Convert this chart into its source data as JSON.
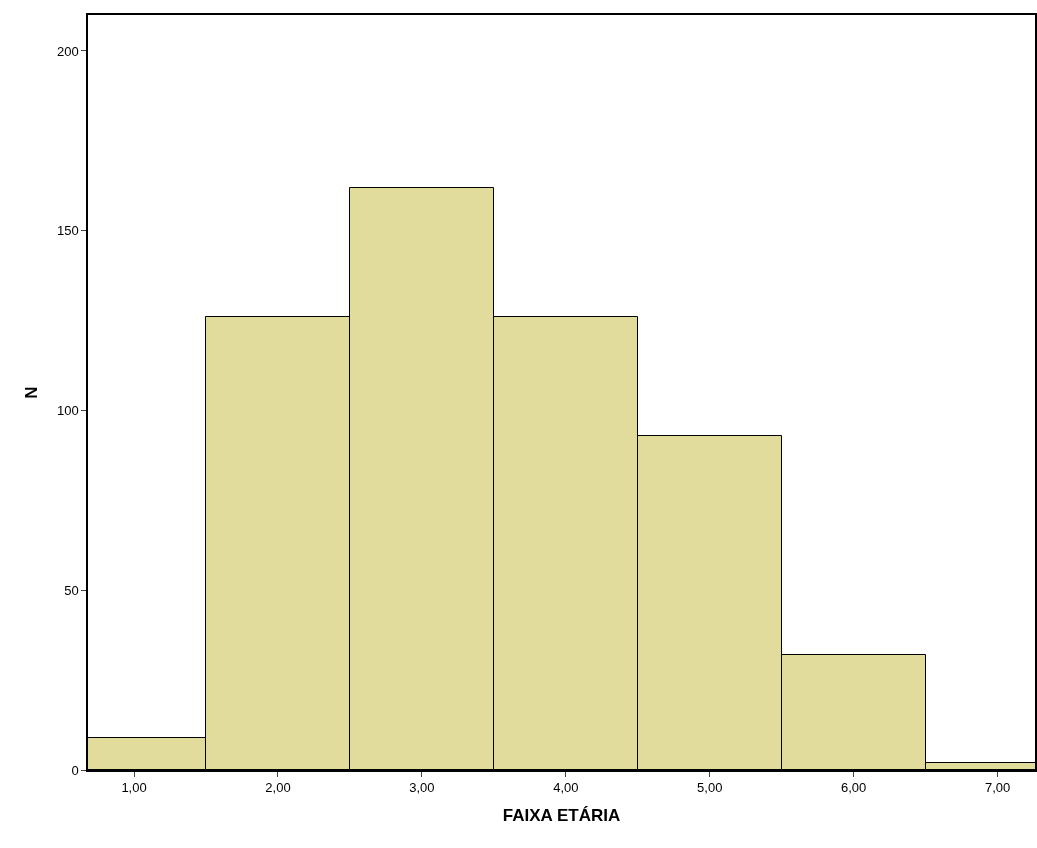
{
  "chart_data": {
    "type": "histogram",
    "xlabel": "FAIXA ETÁRIA",
    "ylabel": "N",
    "bins": [
      0.5,
      1.5,
      2.5,
      3.5,
      4.5,
      5.5,
      6.5,
      7.5
    ],
    "values": [
      9,
      126,
      162,
      126,
      93,
      32,
      2
    ],
    "color": "#e2dc9c",
    "xlim": [
      0.68,
      7.26
    ],
    "ylim": [
      0,
      210
    ],
    "xticks": [
      {
        "value": 1,
        "label": "1,00"
      },
      {
        "value": 2,
        "label": "2,00"
      },
      {
        "value": 3,
        "label": "3,00"
      },
      {
        "value": 4,
        "label": "4,00"
      },
      {
        "value": 5,
        "label": "5,00"
      },
      {
        "value": 6,
        "label": "6,00"
      },
      {
        "value": 7,
        "label": "7,00"
      }
    ],
    "yticks": [
      0,
      50,
      100,
      150,
      200
    ]
  }
}
